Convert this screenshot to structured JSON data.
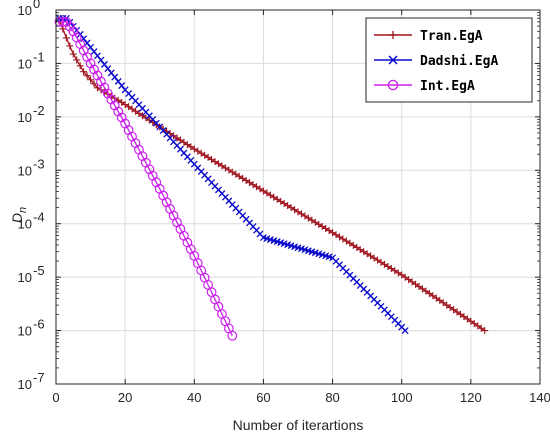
{
  "chart_data": {
    "type": "line",
    "title": "",
    "xlabel": "Number of iterartions",
    "ylabel": {
      "main": "D",
      "sub": "n"
    },
    "xlim": [
      0,
      140
    ],
    "ylim": [
      1e-07,
      1
    ],
    "yscale": "log",
    "grid": true,
    "legend_position": "top-right",
    "x_ticks": [
      0,
      20,
      40,
      60,
      80,
      100,
      120,
      140
    ],
    "x_tick_labels": [
      "0",
      "20",
      "40",
      "60",
      "80",
      "100",
      "120",
      "140"
    ],
    "y_ticks": [
      1e-07,
      1e-06,
      1e-05,
      0.0001,
      0.001,
      0.01,
      0.1,
      1
    ],
    "y_tick_labels": [
      {
        "base": "10",
        "exp": "-7"
      },
      {
        "base": "10",
        "exp": "-6"
      },
      {
        "base": "10",
        "exp": "-5"
      },
      {
        "base": "10",
        "exp": "-4"
      },
      {
        "base": "10",
        "exp": "-3"
      },
      {
        "base": "10",
        "exp": "-2"
      },
      {
        "base": "10",
        "exp": "-1"
      },
      {
        "base": "10",
        "exp": "0"
      }
    ],
    "series": [
      {
        "name": "Tran.EgA",
        "color": "#a0141e",
        "marker": "plus",
        "x_start": 1,
        "x_end": 124,
        "anchors": [
          [
            1,
            0.65
          ],
          [
            3,
            0.3
          ],
          [
            5,
            0.15
          ],
          [
            8,
            0.07
          ],
          [
            12,
            0.035
          ],
          [
            20,
            0.017
          ],
          [
            30,
            0.0065
          ],
          [
            40,
            0.0025
          ],
          [
            60,
            0.00041
          ],
          [
            80,
            6.8e-05
          ],
          [
            100,
            1.1e-05
          ],
          [
            124,
            1e-06
          ]
        ]
      },
      {
        "name": "Dadshi.EgA",
        "color": "#0a0acc",
        "marker": "x",
        "x_start": 1,
        "x_end": 101,
        "anchors": [
          [
            1,
            0.7
          ],
          [
            3,
            0.7
          ],
          [
            7,
            0.35
          ],
          [
            10,
            0.2
          ],
          [
            20,
            0.032
          ],
          [
            30,
            0.0065
          ],
          [
            40,
            0.0013
          ],
          [
            60,
            5.5e-05
          ],
          [
            80,
            2.3e-05
          ],
          [
            101,
            1e-06
          ]
        ]
      },
      {
        "name": "Int.EgA",
        "color": "#cc22ee",
        "marker": "circle",
        "x_start": 1,
        "x_end": 51,
        "anchors": [
          [
            1,
            0.6
          ],
          [
            3,
            0.6
          ],
          [
            5,
            0.4
          ],
          [
            10,
            0.1
          ],
          [
            20,
            0.0075
          ],
          [
            30,
            0.00045
          ],
          [
            40,
            2.5e-05
          ],
          [
            51,
            8e-07
          ]
        ]
      }
    ]
  }
}
